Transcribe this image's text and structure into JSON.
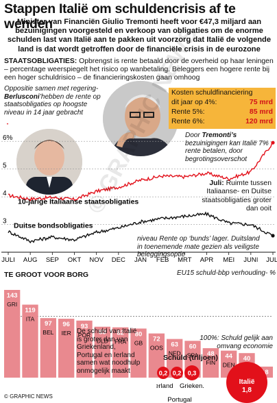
{
  "title": "Stappen Italië om schuldencrisis af te wenden",
  "intro": "Minister van Financiën Giulio Tremonti heeft voor €47,3 miljard aan bezuinigingen voorgesteld en verkoop van obligaties om de enorme schulden last van Italië aan te pakken uit voorzorg dat Italië de volgende land is dat wordt getroffen door de financiële crisis in de eurozone",
  "definition": {
    "term": "STAATSOBLIGATIES:",
    "text": "Opbrengst is rente betaald door de overheid op haar leningen – percentage weerspiegelt het risico op wanbetaling. Beleggers een hogere rente bij een hoger schuldrisico – de financieringskosten gaan omhoog"
  },
  "annotations": {
    "berlusconi_pre": "Oppositie samen met regering-",
    "berlusconi_name": "Berlusconi",
    "berlusconi_post": "’hebben de rente op staatsobligaties op hoogste niveau in 14 jaar gebracht",
    "tremonti_pre": "Door ",
    "tremonti_name": "Tremonti’s",
    "tremonti_post": " bezuinigingen kan Italië 7% rente betalen, door begrotingsoverschot",
    "july_label": "Juli:",
    "july_text": " Ruimte tussen Italiaanse- en Duitse staatsobligaties groter dan ooit",
    "bund_text": "niveau Rente op ‘bunds’ lager. Duitsland in toenemende mate gezien als veiligste beleggingsoptie"
  },
  "cost_box": {
    "heading": "Kosten schuldfinanciering",
    "rows": [
      {
        "label": "dit jaar op 4%:",
        "value": "75 mrd"
      },
      {
        "label": "Rente 5%:",
        "value": "85 mrd"
      },
      {
        "label": "Rente 6%:",
        "value": "120 mrd"
      }
    ]
  },
  "line_chart": {
    "type": "line",
    "y_ticks": [
      "6%",
      "5",
      "4",
      "3"
    ],
    "x_ticks": [
      "JULI",
      "AUG",
      "SEP",
      "OKT",
      "NOV",
      "DEC",
      "JAN",
      "FEB",
      "MRT",
      "APR",
      "MEI",
      "JUNI",
      "JULI"
    ],
    "ylim": [
      2.3,
      6.4
    ],
    "series": [
      {
        "name": "10-jarige Italiaanse staatsobligaties",
        "color": "#e2101a",
        "values": [
          4.05,
          3.92,
          3.98,
          3.9,
          4.2,
          4.35,
          4.6,
          4.75,
          4.72,
          4.85,
          4.65,
          4.9,
          5.95
        ]
      },
      {
        "name": "Duitse bondsobligaties",
        "color": "#111111",
        "values": [
          2.75,
          2.4,
          2.55,
          2.45,
          2.72,
          2.88,
          3.1,
          3.22,
          3.3,
          3.38,
          3.05,
          3.0,
          2.6
        ]
      }
    ]
  },
  "bar_section": {
    "heading": "TE GROOT VOOR BORG",
    "subtitle": "EU15 schuld-bbp verhouding- %",
    "note_100": "100%: Schuld gelijk aan omvang economie",
    "text": "De schuld van Italië is groter dan van Griekenland, Portugal en Ierland samen wat noodhulp onmogelijk maakt",
    "bars": [
      {
        "label": "GRI",
        "value": 143
      },
      {
        "label": "ITA",
        "value": 119
      },
      {
        "label": "BEL",
        "value": 97
      },
      {
        "label": "IER",
        "value": 96
      },
      {
        "label": "POR",
        "value": 93
      },
      {
        "label": "DLD",
        "value": 83
      },
      {
        "label": "FRA",
        "value": 82
      },
      {
        "label": "GB",
        "value": 80
      },
      {
        "label": "OOS",
        "value": 72
      },
      {
        "label": "NED",
        "value": 63
      },
      {
        "label": "SPA",
        "value": 60
      },
      {
        "label": "FIN",
        "value": 48
      },
      {
        "label": "DEN",
        "value": 44
      },
      {
        "label": "ZWE",
        "value": 40
      },
      {
        "label": "LUX",
        "value": 18
      }
    ]
  },
  "debt": {
    "heading": "Schuld (triljoen)",
    "items": [
      {
        "label": "Ierland",
        "value": "0,2"
      },
      {
        "label": "Portugal",
        "value": "0,2"
      },
      {
        "label": "Grieken.",
        "value": "0,3"
      },
      {
        "label": "Italië",
        "value": "1,8"
      }
    ]
  },
  "watermark": "© GRAPHIC NEWS",
  "footer": "© GRAPHIC NEWS",
  "colors": {
    "accent": "#e2101a",
    "bars": "#e9898f",
    "orange": "#f6b53a"
  }
}
